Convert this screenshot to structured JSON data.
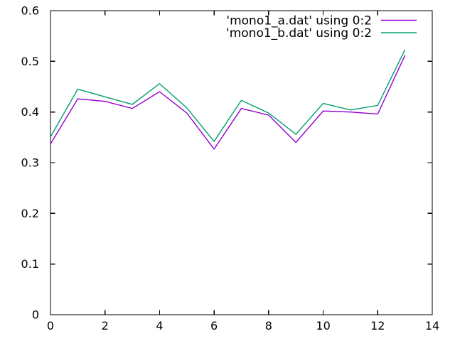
{
  "chart_data": {
    "type": "line",
    "title": "",
    "xlabel": "",
    "ylabel": "",
    "xlim": [
      0,
      14
    ],
    "ylim": [
      0,
      0.6
    ],
    "xticks": [
      0,
      2,
      4,
      6,
      8,
      10,
      12,
      14
    ],
    "xtick_labels": [
      "0",
      "2",
      "4",
      "6",
      "8",
      "10",
      "12",
      "14"
    ],
    "yticks": [
      0,
      0.1,
      0.2,
      0.3,
      0.4,
      0.5,
      0.6
    ],
    "ytick_labels": [
      "0",
      "0.1",
      "0.2",
      "0.3",
      "0.4",
      "0.5",
      "0.6"
    ],
    "grid": false,
    "legend_position": "top-right-inside",
    "background_color": "#ffffff",
    "axis_color": "#000000",
    "x": [
      0,
      1,
      2,
      3,
      4,
      5,
      6,
      7,
      8,
      9,
      10,
      11,
      12,
      13
    ],
    "series": [
      {
        "name": "'mono1_a.dat' using 0:2",
        "color": "#9400d3",
        "values": [
          0.337,
          0.426,
          0.421,
          0.407,
          0.44,
          0.398,
          0.327,
          0.407,
          0.394,
          0.34,
          0.402,
          0.4,
          0.396,
          0.512
        ]
      },
      {
        "name": "'mono1_b.dat' using 0:2",
        "color": "#009e73",
        "values": [
          0.351,
          0.445,
          0.43,
          0.415,
          0.456,
          0.408,
          0.342,
          0.423,
          0.398,
          0.356,
          0.417,
          0.404,
          0.413,
          0.523
        ]
      }
    ]
  }
}
